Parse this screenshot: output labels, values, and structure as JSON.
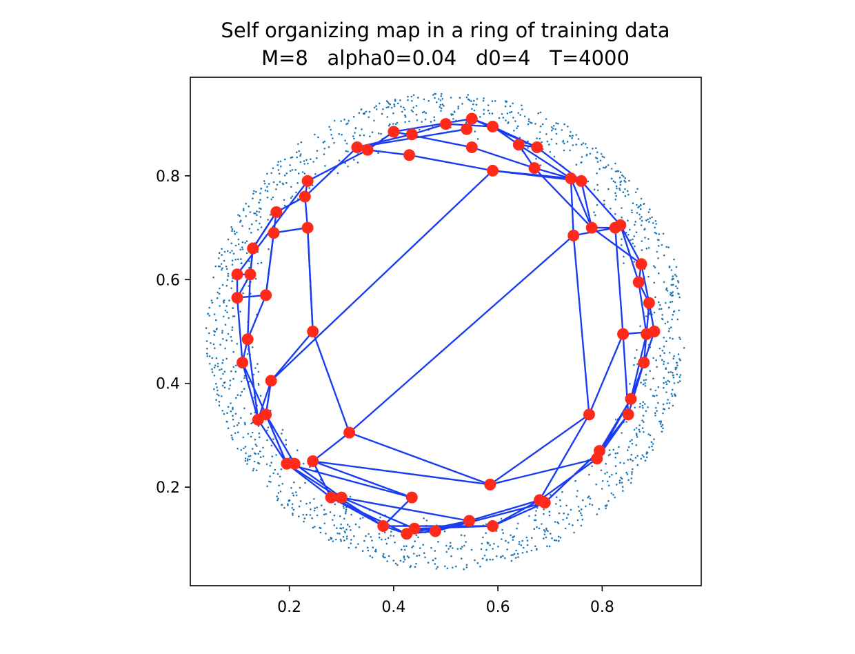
{
  "chart_data": {
    "type": "scatter",
    "title": "Self organizing map in a ring of training data",
    "subtitle": "M=8   alpha0=0.04   d0=4   T=4000",
    "xlabel": "",
    "ylabel": "",
    "xlim": [
      0.01,
      0.99
    ],
    "ylim": [
      0.01,
      0.99
    ],
    "x_ticks": [
      "0.2",
      "0.4",
      "0.6",
      "0.8"
    ],
    "y_ticks": [
      "0.2",
      "0.4",
      "0.6",
      "0.8"
    ],
    "grid": false,
    "colors": {
      "training_data": "#1f77b4",
      "nodes": "#ff2a1a",
      "edges": "#1a3cf0"
    },
    "training_data": {
      "shape": "ring",
      "center": [
        0.5,
        0.5
      ],
      "inner_radius": 0.36,
      "outer_radius": 0.46,
      "count": 1500
    },
    "nodes": [
      [
        0.1,
        0.61
      ],
      [
        0.125,
        0.61
      ],
      [
        0.13,
        0.66
      ],
      [
        0.175,
        0.73
      ],
      [
        0.23,
        0.76
      ],
      [
        0.235,
        0.79
      ],
      [
        0.235,
        0.7
      ],
      [
        0.17,
        0.69
      ],
      [
        0.155,
        0.57
      ],
      [
        0.12,
        0.485
      ],
      [
        0.1,
        0.565
      ],
      [
        0.11,
        0.44
      ],
      [
        0.14,
        0.33
      ],
      [
        0.155,
        0.34
      ],
      [
        0.165,
        0.405
      ],
      [
        0.245,
        0.5
      ],
      [
        0.195,
        0.245
      ],
      [
        0.21,
        0.245
      ],
      [
        0.245,
        0.25
      ],
      [
        0.315,
        0.305
      ],
      [
        0.28,
        0.18
      ],
      [
        0.3,
        0.18
      ],
      [
        0.435,
        0.18
      ],
      [
        0.38,
        0.125
      ],
      [
        0.425,
        0.11
      ],
      [
        0.44,
        0.12
      ],
      [
        0.48,
        0.115
      ],
      [
        0.545,
        0.135
      ],
      [
        0.59,
        0.125
      ],
      [
        0.585,
        0.205
      ],
      [
        0.68,
        0.175
      ],
      [
        0.69,
        0.17
      ],
      [
        0.79,
        0.255
      ],
      [
        0.795,
        0.27
      ],
      [
        0.775,
        0.34
      ],
      [
        0.85,
        0.34
      ],
      [
        0.855,
        0.37
      ],
      [
        0.88,
        0.44
      ],
      [
        0.885,
        0.495
      ],
      [
        0.9,
        0.5
      ],
      [
        0.84,
        0.495
      ],
      [
        0.89,
        0.555
      ],
      [
        0.87,
        0.595
      ],
      [
        0.875,
        0.63
      ],
      [
        0.825,
        0.7
      ],
      [
        0.835,
        0.705
      ],
      [
        0.78,
        0.7
      ],
      [
        0.745,
        0.685
      ],
      [
        0.74,
        0.795
      ],
      [
        0.76,
        0.79
      ],
      [
        0.67,
        0.815
      ],
      [
        0.59,
        0.81
      ],
      [
        0.64,
        0.86
      ],
      [
        0.675,
        0.855
      ],
      [
        0.59,
        0.895
      ],
      [
        0.55,
        0.91
      ],
      [
        0.54,
        0.89
      ],
      [
        0.5,
        0.9
      ],
      [
        0.55,
        0.855
      ],
      [
        0.43,
        0.84
      ],
      [
        0.435,
        0.88
      ],
      [
        0.4,
        0.885
      ],
      [
        0.33,
        0.855
      ],
      [
        0.35,
        0.85
      ]
    ],
    "edges": [
      [
        0,
        1
      ],
      [
        1,
        2
      ],
      [
        2,
        3
      ],
      [
        3,
        4
      ],
      [
        4,
        5
      ],
      [
        5,
        0
      ],
      [
        0,
        10
      ],
      [
        10,
        11
      ],
      [
        11,
        13
      ],
      [
        13,
        16
      ],
      [
        16,
        22
      ],
      [
        22,
        18
      ],
      [
        18,
        19
      ],
      [
        19,
        47
      ],
      [
        47,
        44
      ],
      [
        44,
        45
      ],
      [
        45,
        43
      ],
      [
        43,
        41
      ],
      [
        41,
        39
      ],
      [
        39,
        37
      ],
      [
        37,
        36
      ],
      [
        36,
        33
      ],
      [
        33,
        31
      ],
      [
        31,
        28
      ],
      [
        28,
        23
      ],
      [
        23,
        16
      ],
      [
        16,
        12
      ],
      [
        12,
        9
      ],
      [
        9,
        8
      ],
      [
        8,
        7
      ],
      [
        7,
        3
      ],
      [
        3,
        2
      ],
      [
        2,
        1
      ],
      [
        1,
        9
      ],
      [
        9,
        11
      ],
      [
        11,
        12
      ],
      [
        12,
        14
      ],
      [
        14,
        15
      ],
      [
        15,
        6
      ],
      [
        6,
        4
      ],
      [
        4,
        62
      ],
      [
        62,
        60
      ],
      [
        60,
        57
      ],
      [
        57,
        54
      ],
      [
        54,
        52
      ],
      [
        52,
        50
      ],
      [
        50,
        46
      ],
      [
        46,
        43
      ],
      [
        43,
        42
      ],
      [
        42,
        38
      ],
      [
        38,
        36
      ],
      [
        36,
        32
      ],
      [
        32,
        30
      ],
      [
        30,
        27
      ],
      [
        27,
        24
      ],
      [
        24,
        20
      ],
      [
        20,
        16
      ],
      [
        16,
        13
      ],
      [
        13,
        14
      ],
      [
        14,
        51
      ],
      [
        51,
        48
      ],
      [
        48,
        46
      ],
      [
        46,
        44
      ],
      [
        44,
        40
      ],
      [
        40,
        35
      ],
      [
        35,
        32
      ],
      [
        32,
        29
      ],
      [
        29,
        19
      ],
      [
        19,
        15
      ],
      [
        15,
        6
      ],
      [
        6,
        7
      ],
      [
        7,
        8
      ],
      [
        8,
        10
      ],
      [
        10,
        1
      ],
      [
        5,
        63
      ],
      [
        63,
        59
      ],
      [
        59,
        51
      ],
      [
        51,
        49
      ],
      [
        49,
        45
      ],
      [
        45,
        42
      ],
      [
        42,
        41
      ],
      [
        41,
        38
      ],
      [
        38,
        37
      ],
      [
        37,
        35
      ],
      [
        35,
        33
      ],
      [
        33,
        31
      ],
      [
        31,
        26
      ],
      [
        26,
        25
      ],
      [
        25,
        21
      ],
      [
        21,
        17
      ],
      [
        17,
        13
      ],
      [
        13,
        12
      ],
      [
        63,
        61
      ],
      [
        61,
        55
      ],
      [
        55,
        53
      ],
      [
        53,
        49
      ],
      [
        49,
        46
      ],
      [
        47,
        34
      ],
      [
        34,
        30
      ],
      [
        30,
        28
      ],
      [
        28,
        25
      ],
      [
        25,
        24
      ],
      [
        24,
        23
      ],
      [
        23,
        20
      ],
      [
        20,
        18
      ],
      [
        18,
        29
      ],
      [
        29,
        34
      ],
      [
        34,
        40
      ],
      [
        40,
        39
      ],
      [
        61,
        58
      ],
      [
        58,
        50
      ],
      [
        50,
        48
      ],
      [
        48,
        47
      ],
      [
        62,
        56
      ],
      [
        56,
        55
      ],
      [
        55,
        54
      ],
      [
        54,
        53
      ],
      [
        53,
        52
      ],
      [
        52,
        48
      ],
      [
        21,
        27
      ],
      [
        27,
        26
      ],
      [
        26,
        24
      ],
      [
        22,
        23
      ]
    ]
  }
}
